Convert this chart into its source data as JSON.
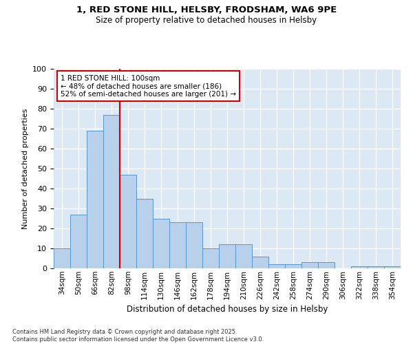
{
  "title_line1": "1, RED STONE HILL, HELSBY, FRODSHAM, WA6 9PE",
  "title_line2": "Size of property relative to detached houses in Helsby",
  "xlabel": "Distribution of detached houses by size in Helsby",
  "ylabel": "Number of detached properties",
  "categories": [
    "34sqm",
    "50sqm",
    "66sqm",
    "82sqm",
    "98sqm",
    "114sqm",
    "130sqm",
    "146sqm",
    "162sqm",
    "178sqm",
    "194sqm",
    "210sqm",
    "226sqm",
    "242sqm",
    "258sqm",
    "274sqm",
    "290sqm",
    "306sqm",
    "322sqm",
    "338sqm",
    "354sqm"
  ],
  "values": [
    10,
    27,
    69,
    77,
    47,
    35,
    25,
    23,
    23,
    10,
    12,
    12,
    6,
    2,
    2,
    3,
    3,
    0,
    1,
    1,
    1
  ],
  "bar_color": "#b8d0ea",
  "bar_edge_color": "#5a96cc",
  "background_color": "#dde8f5",
  "grid_color": "#ffffff",
  "vline_color": "#cc0000",
  "annotation_text": "1 RED STONE HILL: 100sqm\n← 48% of detached houses are smaller (186)\n52% of semi-detached houses are larger (201) →",
  "annotation_box_color": "#ffffff",
  "annotation_box_edge": "#cc0000",
  "footer_text": "Contains HM Land Registry data © Crown copyright and database right 2025.\nContains public sector information licensed under the Open Government Licence v3.0.",
  "ylim": [
    0,
    100
  ],
  "yticks": [
    0,
    10,
    20,
    30,
    40,
    50,
    60,
    70,
    80,
    90,
    100
  ]
}
